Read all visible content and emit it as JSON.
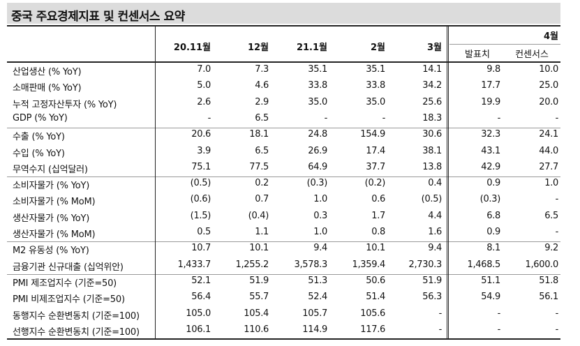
{
  "title": "중국 주요경제지표 및 컨센서스 요약",
  "columns": {
    "months": [
      "20.11월",
      "12월",
      "21.1월",
      "2월",
      "3월"
    ],
    "forecast_month": "4월",
    "forecast_sub": [
      "발표치",
      "컨센서스"
    ]
  },
  "rows": [
    {
      "label": "산업생산 (% YoY)",
      "values": [
        "7.0",
        "7.3",
        "35.1",
        "35.1",
        "14.1",
        "9.8",
        "10.0"
      ]
    },
    {
      "label": "소매판매 (% YoY)",
      "values": [
        "5.0",
        "4.6",
        "33.8",
        "33.8",
        "34.2",
        "17.7",
        "25.0"
      ]
    },
    {
      "label": "누적 고정자산투자 (% YoY)",
      "values": [
        "2.6",
        "2.9",
        "35.0",
        "35.0",
        "25.6",
        "19.9",
        "20.0"
      ]
    },
    {
      "label": "GDP (% YoY)",
      "values": [
        "-",
        "6.5",
        "-",
        "-",
        "18.3",
        "-",
        "-"
      ]
    },
    {
      "label": "수출 (% YoY)",
      "values": [
        "20.6",
        "18.1",
        "24.8",
        "154.9",
        "30.6",
        "32.3",
        "24.1"
      ]
    },
    {
      "label": "수입 (% YoY)",
      "values": [
        "3.9",
        "6.5",
        "26.9",
        "17.4",
        "38.1",
        "43.1",
        "44.0"
      ]
    },
    {
      "label": "무역수지 (십억달러)",
      "values": [
        "75.1",
        "77.5",
        "64.9",
        "37.7",
        "13.8",
        "42.9",
        "27.7"
      ]
    },
    {
      "label": "소비자물가 (% YoY)",
      "values": [
        "(0.5)",
        "0.2",
        "(0.3)",
        "(0.2)",
        "0.4",
        "0.9",
        "1.0"
      ]
    },
    {
      "label": "소비자물가 (% MoM)",
      "values": [
        "(0.6)",
        "0.7",
        "1.0",
        "0.6",
        "(0.5)",
        "(0.3)",
        "-"
      ]
    },
    {
      "label": "생산자물가 (% YoY)",
      "values": [
        "(1.5)",
        "(0.4)",
        "0.3",
        "1.7",
        "4.4",
        "6.8",
        "6.5"
      ]
    },
    {
      "label": "생산자물가 (% MoM)",
      "values": [
        "0.5",
        "1.1",
        "1.0",
        "0.8",
        "1.6",
        "0.9",
        "-"
      ]
    },
    {
      "label": "M2 유동성 (% YoY)",
      "values": [
        "10.7",
        "10.1",
        "9.4",
        "10.1",
        "9.4",
        "8.1",
        "9.2"
      ]
    },
    {
      "label": "금융기관 신규대출 (십억위안)",
      "values": [
        "1,433.7",
        "1,255.2",
        "3,578.3",
        "1,359.4",
        "2,730.3",
        "1,468.5",
        "1,600.0"
      ]
    },
    {
      "label": "PMI 제조업지수 (기준=50)",
      "values": [
        "52.1",
        "51.9",
        "51.3",
        "50.6",
        "51.9",
        "51.1",
        "51.8"
      ]
    },
    {
      "label": "PMI 비제조업지수 (기준=50)",
      "values": [
        "56.4",
        "55.7",
        "52.4",
        "51.4",
        "56.3",
        "54.9",
        "56.1"
      ]
    },
    {
      "label": "동행지수 순환변동치 (기준=100)",
      "values": [
        "105.0",
        "105.4",
        "105.7",
        "105.6",
        "-",
        "-",
        "-"
      ]
    },
    {
      "label": "선행지수 순환변동치 (기준=100)",
      "values": [
        "106.1",
        "110.6",
        "114.9",
        "117.6",
        "-",
        "-",
        "-"
      ]
    }
  ]
}
